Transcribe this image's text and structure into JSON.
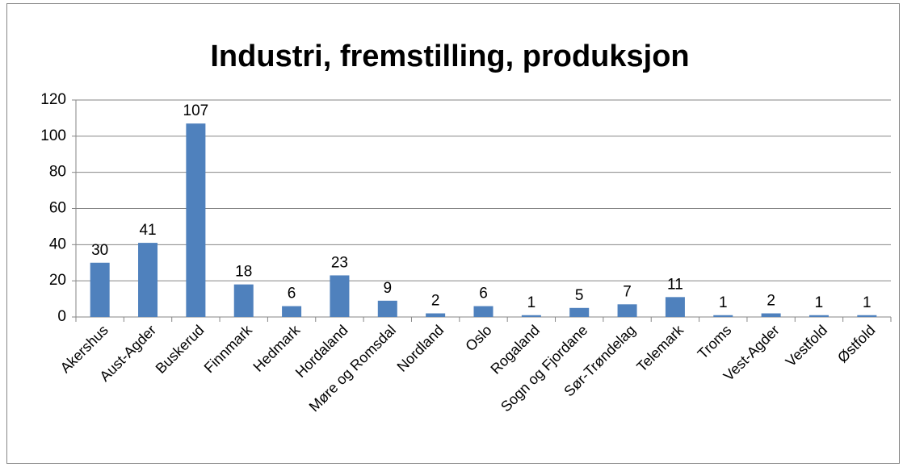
{
  "chart_data": {
    "type": "bar",
    "title": "Industri, fremstilling, produksjon",
    "categories": [
      "Akershus",
      "Aust-Agder",
      "Buskerud",
      "Finnmark",
      "Hedmark",
      "Hordaland",
      "Møre og Romsdal",
      "Nordland",
      "Oslo",
      "Rogaland",
      "Sogn og Fjordane",
      "Sør-Trøndelag",
      "Telemark",
      "Troms",
      "Vest-Agder",
      "Vestfold",
      "Østfold"
    ],
    "values": [
      30,
      41,
      107,
      18,
      6,
      23,
      9,
      2,
      6,
      1,
      5,
      7,
      11,
      1,
      2,
      1,
      1
    ],
    "color": "#4f81bd",
    "ylim": [
      0,
      120
    ],
    "yticks": [
      0,
      20,
      40,
      60,
      80,
      100,
      120
    ],
    "grid": true
  }
}
